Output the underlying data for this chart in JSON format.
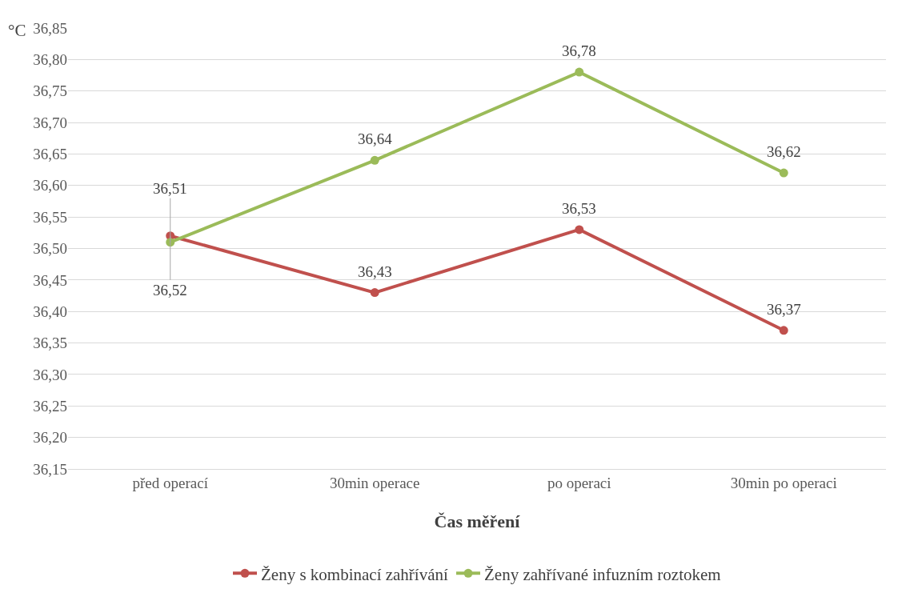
{
  "chart_data": {
    "type": "line",
    "xlabel": "Čas měření",
    "ylabel": "°C",
    "categories": [
      "před operací",
      "30min operace",
      "po operaci",
      "30min po operaci"
    ],
    "series": [
      {
        "name": "Ženy s kombinací zahřívání",
        "color": "#c0504d",
        "values": [
          36.52,
          36.43,
          36.53,
          36.37
        ],
        "value_labels": [
          "36,52",
          "36,43",
          "36,53",
          "36,37"
        ]
      },
      {
        "name": "Ženy zahřívané infuzním roztokem",
        "color": "#9bbb59",
        "values": [
          36.51,
          36.64,
          36.78,
          36.62
        ],
        "value_labels": [
          "36,51",
          "36,64",
          "36,78",
          "36,62"
        ]
      }
    ],
    "ylim": [
      36.15,
      36.85
    ],
    "yticks": [
      {
        "value": 36.15,
        "label": "36,15"
      },
      {
        "value": 36.2,
        "label": "36,20"
      },
      {
        "value": 36.25,
        "label": "36,25"
      },
      {
        "value": 36.3,
        "label": "36,30"
      },
      {
        "value": 36.35,
        "label": "36,35"
      },
      {
        "value": 36.4,
        "label": "36,40"
      },
      {
        "value": 36.45,
        "label": "36,45"
      },
      {
        "value": 36.5,
        "label": "36,50"
      },
      {
        "value": 36.55,
        "label": "36,55"
      },
      {
        "value": 36.6,
        "label": "36,60"
      },
      {
        "value": 36.65,
        "label": "36,65"
      },
      {
        "value": 36.7,
        "label": "36,70"
      },
      {
        "value": 36.75,
        "label": "36,75"
      },
      {
        "value": 36.8,
        "label": "36,80"
      },
      {
        "value": 36.85,
        "label": "36,85"
      }
    ],
    "grid": "y",
    "legend": "bottom",
    "marker": "circle",
    "line_style": "solid"
  }
}
